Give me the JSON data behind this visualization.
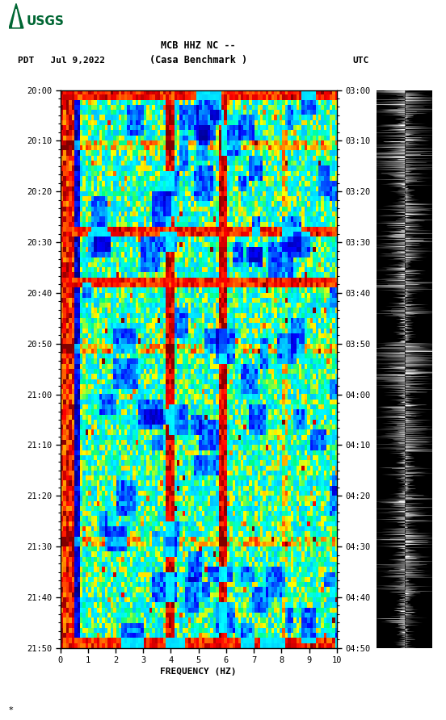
{
  "title_line1": "MCB HHZ NC --",
  "title_line2": "(Casa Benchmark )",
  "left_label": "PDT   Jul 9,2022",
  "right_label": "UTC",
  "ylabel_left": [
    "20:00",
    "20:10",
    "20:20",
    "20:30",
    "20:40",
    "20:50",
    "21:00",
    "21:10",
    "21:20",
    "21:30",
    "21:40",
    "21:50"
  ],
  "ylabel_right": [
    "03:00",
    "03:10",
    "03:20",
    "03:30",
    "03:40",
    "03:50",
    "04:00",
    "04:10",
    "04:20",
    "04:30",
    "04:40",
    "04:50"
  ],
  "xlabel": "FREQUENCY (HZ)",
  "xmin": 0,
  "xmax": 10,
  "freq_ticks": [
    0,
    1,
    2,
    3,
    4,
    5,
    6,
    7,
    8,
    9,
    10
  ],
  "bg_color": "white",
  "spectrogram_seed": 42,
  "n_time": 110,
  "n_freq": 100,
  "logo_color": "#006633"
}
